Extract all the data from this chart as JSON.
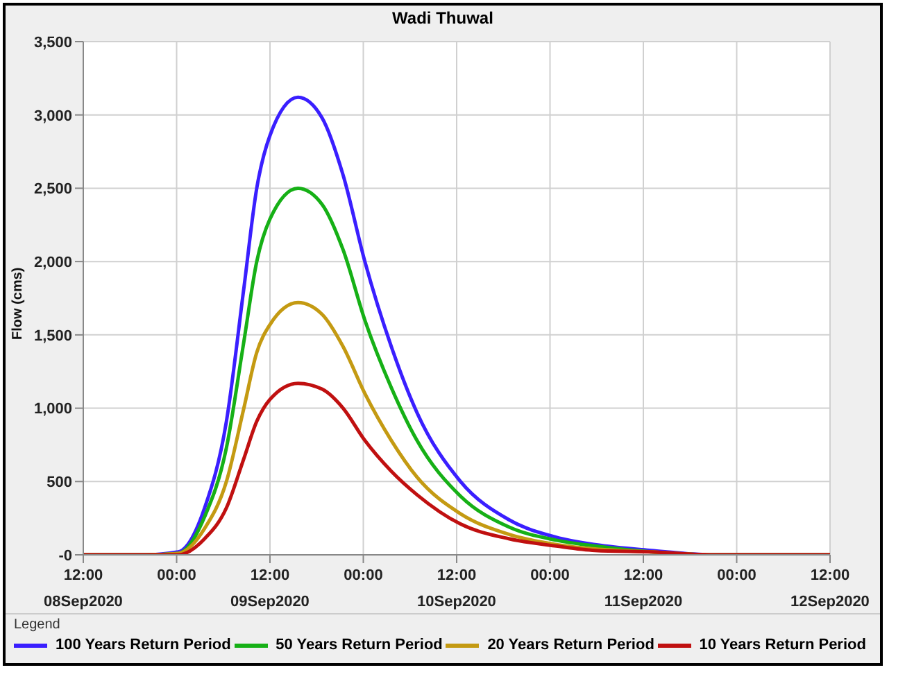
{
  "chart_data": {
    "type": "line",
    "title": "Wadi Thuwal",
    "ylabel": "Flow (cms)",
    "legend_title": "Legend",
    "x": [
      "2020-09-08T12:00",
      "2020-09-08T20:00",
      "2020-09-09T00:12",
      "2020-09-09T03:36",
      "2020-09-09T06:24",
      "2020-09-09T08:36",
      "2020-09-09T10:18",
      "2020-09-09T12:00",
      "2020-09-09T15:36",
      "2020-09-09T18:42",
      "2020-09-09T21:24",
      "2020-09-10T00:12",
      "2020-09-10T03:36",
      "2020-09-10T06:54",
      "2020-09-10T12:30",
      "2020-09-10T18:42",
      "2020-09-11T00:48",
      "2020-09-11T05:48",
      "2020-09-11T13:00",
      "2020-09-11T21:00",
      "2020-09-12T12:00"
    ],
    "series": [
      {
        "name": "100 Years Return Period",
        "color": "#3a1fff",
        "values": [
          0,
          0,
          20,
          320,
          910,
          1800,
          2500,
          2860,
          3120,
          2980,
          2590,
          2000,
          1420,
          970,
          500,
          240,
          120,
          70,
          30,
          0,
          0
        ]
      },
      {
        "name": "50 Years Return Period",
        "color": "#16b016",
        "values": [
          0,
          0,
          10,
          260,
          730,
          1440,
          2000,
          2290,
          2500,
          2390,
          2080,
          1600,
          1140,
          780,
          400,
          190,
          100,
          60,
          20,
          0,
          0
        ]
      },
      {
        "name": "20 Years Return Period",
        "color": "#c49a12",
        "values": [
          0,
          0,
          10,
          180,
          500,
          990,
          1380,
          1570,
          1720,
          1640,
          1420,
          1100,
          780,
          530,
          280,
          140,
          70,
          40,
          20,
          0,
          0
        ]
      },
      {
        "name": "10 Years Return Period",
        "color": "#c01010",
        "values": [
          0,
          0,
          0,
          110,
          320,
          650,
          910,
          1060,
          1170,
          1130,
          1000,
          780,
          570,
          410,
          210,
          110,
          60,
          30,
          20,
          0,
          0
        ]
      }
    ],
    "xlim": [
      "2020-09-08T12:00",
      "2020-09-12T12:00"
    ],
    "xticks": [
      {
        "value": "2020-09-08T12:00",
        "label": "12:00\n08Sep2020"
      },
      {
        "value": "2020-09-09T00:00",
        "label": "00:00"
      },
      {
        "value": "2020-09-09T12:00",
        "label": "12:00\n09Sep2020"
      },
      {
        "value": "2020-09-10T00:00",
        "label": "00:00"
      },
      {
        "value": "2020-09-10T12:00",
        "label": "12:00\n10Sep2020"
      },
      {
        "value": "2020-09-11T00:00",
        "label": "00:00"
      },
      {
        "value": "2020-09-11T12:00",
        "label": "12:00\n11Sep2020"
      },
      {
        "value": "2020-09-12T00:00",
        "label": "00:00"
      },
      {
        "value": "2020-09-12T12:00",
        "label": "12:00\n12Sep2020"
      }
    ],
    "ylim": [
      0,
      3500
    ],
    "yticks": [
      {
        "value": 0,
        "label": "-0"
      },
      {
        "value": 500,
        "label": "500"
      },
      {
        "value": 1000,
        "label": "1,000"
      },
      {
        "value": 1500,
        "label": "1,500"
      },
      {
        "value": 2000,
        "label": "2,000"
      },
      {
        "value": 2500,
        "label": "2,500"
      },
      {
        "value": 3000,
        "label": "3,000"
      },
      {
        "value": 3500,
        "label": "3,500"
      }
    ],
    "grid": true,
    "legend": "bottom",
    "marker": "none",
    "line_style": "solid"
  }
}
